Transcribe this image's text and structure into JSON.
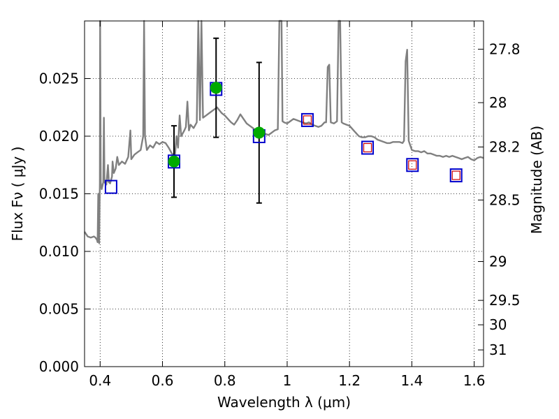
{
  "chart_data": {
    "type": "scatter",
    "xlabel": "Wavelength  λ (μm)",
    "ylabel": "Flux  Fν  ( μJy )",
    "y2label": "Magnitude (AB)",
    "xlim": [
      0.35,
      1.63
    ],
    "ylim": [
      0.0,
      0.03
    ],
    "grid": true,
    "x_ticks": [
      0.4,
      0.6,
      0.8,
      1.0,
      1.2,
      1.4,
      1.6
    ],
    "x_tick_labels": [
      "0.4",
      "0.6",
      "0.8",
      "1",
      "1.2",
      "1.4",
      "1.6"
    ],
    "y_ticks": [
      0.0,
      0.005,
      0.01,
      0.015,
      0.02,
      0.025
    ],
    "y_tick_labels": [
      "0.000",
      "0.005",
      "0.010",
      "0.015",
      "0.020",
      "0.025"
    ],
    "mag_ticks": [
      {
        "label": "27.8",
        "flux": 0.02755
      },
      {
        "label": "28",
        "flux": 0.02291
      },
      {
        "label": "28.2",
        "flux": 0.01906
      },
      {
        "label": "28.5",
        "flux": 0.01446
      },
      {
        "label": "29",
        "flux": 0.00912
      },
      {
        "label": "29.5",
        "flux": 0.00575
      },
      {
        "label": "30",
        "flux": 0.00363
      },
      {
        "label": "31",
        "flux": 0.00145
      }
    ],
    "series": [
      {
        "kind": "model-spectrum",
        "color": "#808080",
        "points": [
          [
            0.35,
            0.0117
          ],
          [
            0.36,
            0.0113
          ],
          [
            0.37,
            0.0112
          ],
          [
            0.38,
            0.0113
          ],
          [
            0.385,
            0.0112
          ],
          [
            0.39,
            0.011
          ],
          [
            0.392,
            0.0108
          ],
          [
            0.394,
            0.015
          ],
          [
            0.397,
            0.0107
          ],
          [
            0.399,
            0.016
          ],
          [
            0.4,
            0.03
          ],
          [
            0.402,
            0.016
          ],
          [
            0.405,
            0.0154
          ],
          [
            0.41,
            0.016
          ],
          [
            0.412,
            0.0216
          ],
          [
            0.414,
            0.016
          ],
          [
            0.42,
            0.0158
          ],
          [
            0.425,
            0.0175
          ],
          [
            0.428,
            0.016
          ],
          [
            0.432,
            0.0159
          ],
          [
            0.438,
            0.0165
          ],
          [
            0.44,
            0.0178
          ],
          [
            0.444,
            0.0168
          ],
          [
            0.45,
            0.0172
          ],
          [
            0.455,
            0.0182
          ],
          [
            0.46,
            0.0175
          ],
          [
            0.47,
            0.0178
          ],
          [
            0.48,
            0.0176
          ],
          [
            0.49,
            0.0182
          ],
          [
            0.497,
            0.0205
          ],
          [
            0.5,
            0.018
          ],
          [
            0.51,
            0.0184
          ],
          [
            0.52,
            0.0186
          ],
          [
            0.53,
            0.0188
          ],
          [
            0.538,
            0.02
          ],
          [
            0.541,
            0.03
          ],
          [
            0.544,
            0.02
          ],
          [
            0.55,
            0.0188
          ],
          [
            0.56,
            0.0192
          ],
          [
            0.57,
            0.019
          ],
          [
            0.58,
            0.0195
          ],
          [
            0.59,
            0.0193
          ],
          [
            0.6,
            0.0195
          ],
          [
            0.61,
            0.0194
          ],
          [
            0.62,
            0.019
          ],
          [
            0.63,
            0.0185
          ],
          [
            0.64,
            0.0183
          ],
          [
            0.645,
            0.02
          ],
          [
            0.65,
            0.019
          ],
          [
            0.655,
            0.0218
          ],
          [
            0.66,
            0.02
          ],
          [
            0.67,
            0.0205
          ],
          [
            0.675,
            0.0208
          ],
          [
            0.68,
            0.023
          ],
          [
            0.685,
            0.0205
          ],
          [
            0.69,
            0.021
          ],
          [
            0.7,
            0.0207
          ],
          [
            0.71,
            0.0212
          ],
          [
            0.715,
            0.03
          ],
          [
            0.72,
            0.0214
          ],
          [
            0.725,
            0.03
          ],
          [
            0.73,
            0.0216
          ],
          [
            0.74,
            0.0218
          ],
          [
            0.75,
            0.022
          ],
          [
            0.76,
            0.0222
          ],
          [
            0.775,
            0.0225
          ],
          [
            0.79,
            0.022
          ],
          [
            0.8,
            0.0218
          ],
          [
            0.81,
            0.0215
          ],
          [
            0.82,
            0.0212
          ],
          [
            0.83,
            0.021
          ],
          [
            0.84,
            0.0214
          ],
          [
            0.85,
            0.0219
          ],
          [
            0.86,
            0.0215
          ],
          [
            0.87,
            0.0211
          ],
          [
            0.88,
            0.0209
          ],
          [
            0.89,
            0.0207
          ],
          [
            0.9,
            0.0205
          ],
          [
            0.91,
            0.0204
          ],
          [
            0.92,
            0.0203
          ],
          [
            0.93,
            0.0202
          ],
          [
            0.94,
            0.0201
          ],
          [
            0.95,
            0.0203
          ],
          [
            0.96,
            0.0205
          ],
          [
            0.97,
            0.0206
          ],
          [
            0.975,
            0.03
          ],
          [
            0.982,
            0.03
          ],
          [
            0.985,
            0.0213
          ],
          [
            0.99,
            0.0212
          ],
          [
            1.0,
            0.0211
          ],
          [
            1.01,
            0.0213
          ],
          [
            1.02,
            0.0215
          ],
          [
            1.03,
            0.0214
          ],
          [
            1.04,
            0.0213
          ],
          [
            1.05,
            0.0212
          ],
          [
            1.06,
            0.0211
          ],
          [
            1.07,
            0.0212
          ],
          [
            1.08,
            0.021
          ],
          [
            1.09,
            0.0209
          ],
          [
            1.1,
            0.0208
          ],
          [
            1.11,
            0.0209
          ],
          [
            1.12,
            0.0212
          ],
          [
            1.125,
            0.0212
          ],
          [
            1.13,
            0.026
          ],
          [
            1.135,
            0.0262
          ],
          [
            1.14,
            0.0212
          ],
          [
            1.15,
            0.0211
          ],
          [
            1.16,
            0.0213
          ],
          [
            1.165,
            0.03
          ],
          [
            1.17,
            0.03
          ],
          [
            1.175,
            0.0212
          ],
          [
            1.18,
            0.0211
          ],
          [
            1.19,
            0.021
          ],
          [
            1.2,
            0.0209
          ],
          [
            1.21,
            0.0206
          ],
          [
            1.22,
            0.0203
          ],
          [
            1.23,
            0.02
          ],
          [
            1.24,
            0.0199
          ],
          [
            1.25,
            0.0199
          ],
          [
            1.26,
            0.02
          ],
          [
            1.27,
            0.02
          ],
          [
            1.28,
            0.0199
          ],
          [
            1.29,
            0.0197
          ],
          [
            1.3,
            0.0196
          ],
          [
            1.31,
            0.0195
          ],
          [
            1.32,
            0.0194
          ],
          [
            1.33,
            0.0194
          ],
          [
            1.34,
            0.0195
          ],
          [
            1.35,
            0.0195
          ],
          [
            1.36,
            0.0195
          ],
          [
            1.37,
            0.0194
          ],
          [
            1.375,
            0.0196
          ],
          [
            1.38,
            0.0265
          ],
          [
            1.385,
            0.0275
          ],
          [
            1.39,
            0.0196
          ],
          [
            1.4,
            0.0188
          ],
          [
            1.41,
            0.0187
          ],
          [
            1.42,
            0.0187
          ],
          [
            1.43,
            0.0186
          ],
          [
            1.44,
            0.0187
          ],
          [
            1.45,
            0.0185
          ],
          [
            1.46,
            0.0185
          ],
          [
            1.47,
            0.0184
          ],
          [
            1.48,
            0.0183
          ],
          [
            1.49,
            0.0183
          ],
          [
            1.5,
            0.0182
          ],
          [
            1.51,
            0.0183
          ],
          [
            1.52,
            0.0182
          ],
          [
            1.53,
            0.0183
          ],
          [
            1.54,
            0.0182
          ],
          [
            1.55,
            0.0181
          ],
          [
            1.56,
            0.018
          ],
          [
            1.57,
            0.0181
          ],
          [
            1.58,
            0.0182
          ],
          [
            1.59,
            0.018
          ],
          [
            1.6,
            0.0179
          ],
          [
            1.61,
            0.0181
          ],
          [
            1.62,
            0.0182
          ],
          [
            1.63,
            0.0181
          ]
        ]
      },
      {
        "kind": "model-photometry",
        "marker": "open-square",
        "color": "#0000cc",
        "points": [
          [
            0.435,
            0.0156
          ],
          [
            0.637,
            0.0178
          ],
          [
            0.772,
            0.0241
          ],
          [
            0.91,
            0.02
          ],
          [
            1.065,
            0.0214
          ],
          [
            1.258,
            0.019
          ],
          [
            1.402,
            0.0175
          ],
          [
            1.542,
            0.0166
          ]
        ]
      },
      {
        "kind": "detections",
        "marker": "filled-circle",
        "color": "#00aa00",
        "points": [
          {
            "x": 0.637,
            "y": 0.0178,
            "yerr_low": 0.0031,
            "yerr_high": 0.0031
          },
          {
            "x": 0.772,
            "y": 0.0242,
            "yerr_low": 0.0043,
            "yerr_high": 0.0043
          },
          {
            "x": 0.91,
            "y": 0.0203,
            "yerr_low": 0.0061,
            "yerr_high": 0.0061
          }
        ]
      },
      {
        "kind": "upper-limits",
        "marker": "open-square",
        "color": "#cc0000",
        "points": [
          [
            1.065,
            0.0214
          ],
          [
            1.258,
            0.019
          ],
          [
            1.402,
            0.0175
          ],
          [
            1.542,
            0.0166
          ]
        ]
      }
    ]
  }
}
